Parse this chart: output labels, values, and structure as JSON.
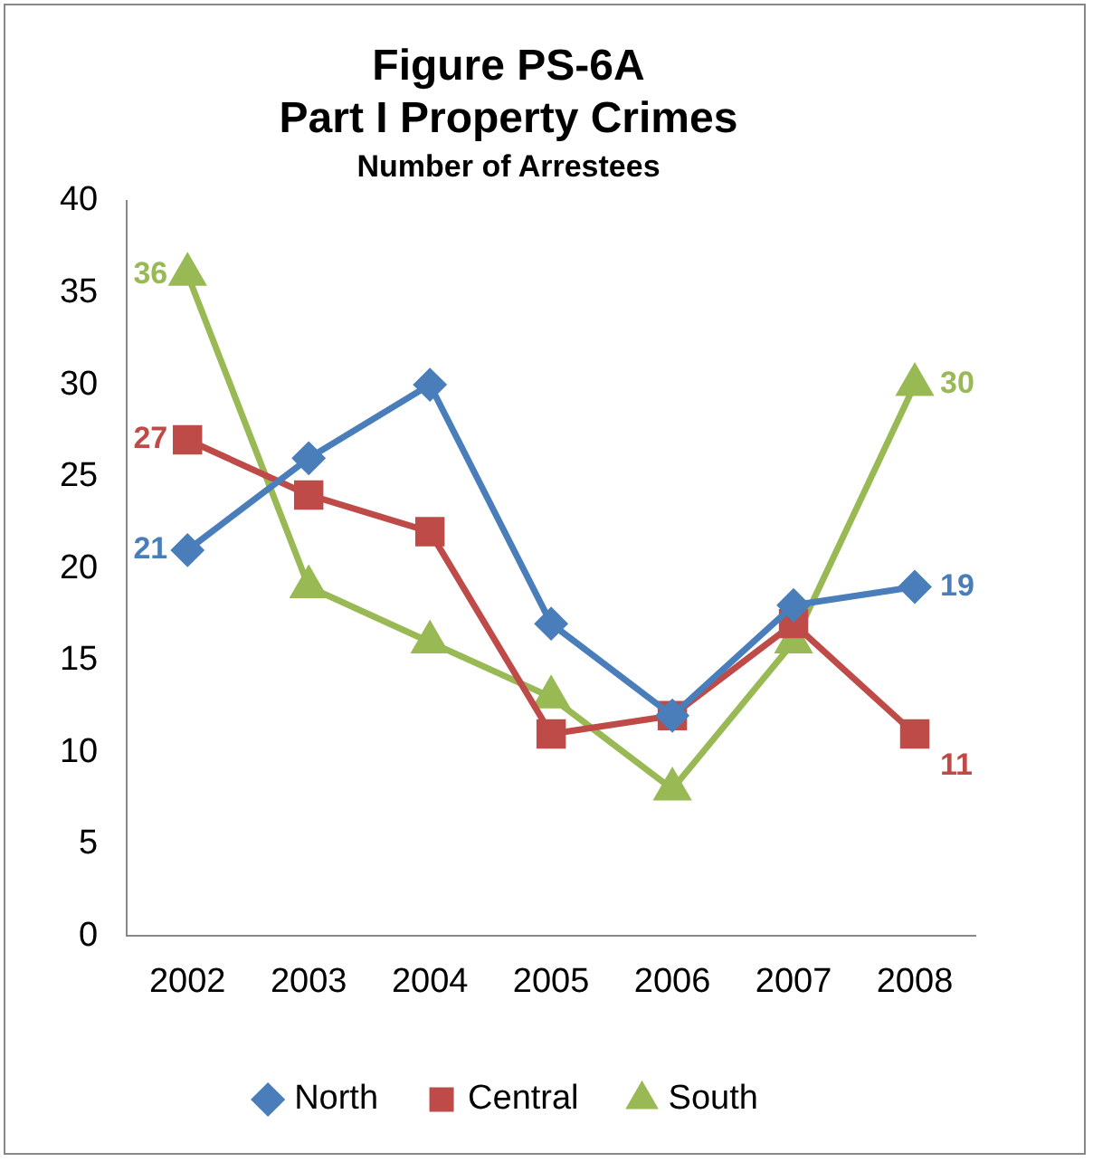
{
  "chart_data": {
    "type": "line",
    "title": "Figure PS-6A\nPart I Property Crimes",
    "subtitle": "Number of Arrestees",
    "categories": [
      "2002",
      "2003",
      "2004",
      "2005",
      "2006",
      "2007",
      "2008"
    ],
    "series": [
      {
        "name": "North",
        "color": "#4a7ebb",
        "marker": "diamond",
        "values": [
          21,
          26,
          30,
          17,
          12,
          18,
          19
        ],
        "value_labels": [
          "21",
          null,
          null,
          null,
          null,
          null,
          "19"
        ]
      },
      {
        "name": "Central",
        "color": "#be4b48",
        "marker": "square",
        "values": [
          27,
          24,
          22,
          11,
          12,
          17,
          11
        ],
        "value_labels": [
          "27",
          null,
          null,
          null,
          null,
          null,
          "11"
        ]
      },
      {
        "name": "South",
        "color": "#98b954",
        "marker": "triangle",
        "values": [
          36,
          19,
          16,
          13,
          8,
          16,
          30
        ],
        "value_labels": [
          "36",
          null,
          null,
          null,
          null,
          null,
          "30"
        ]
      }
    ],
    "ylim": [
      0,
      40
    ],
    "yticks": [
      0,
      5,
      10,
      15,
      20,
      25,
      30,
      35,
      40
    ],
    "grid": false,
    "legend": "bottom",
    "line_style": "solid"
  }
}
